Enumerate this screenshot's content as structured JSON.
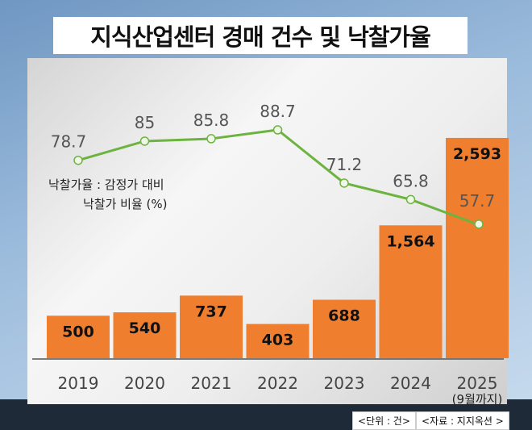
{
  "chart_data": {
    "type": "bar+line",
    "title": "지식산업센터 경매 건수 및 낙찰가율",
    "categories": [
      "2019",
      "2020",
      "2021",
      "2022",
      "2023",
      "2024",
      "2025"
    ],
    "category_sublabels": {
      "2025": "(9월까지)"
    },
    "series": [
      {
        "type": "bar",
        "values": [
          500,
          540,
          737,
          403,
          688,
          1564,
          2593
        ],
        "color": "#ef7f2f",
        "labels": [
          "500",
          "540",
          "737",
          "403",
          "688",
          "1,564",
          "2,593"
        ]
      },
      {
        "type": "line",
        "name": "낙찰가율 : 감정가 대비\n낙찰가 비율 (%)",
        "values": [
          78.7,
          85,
          85.8,
          88.7,
          71.2,
          65.8,
          57.7
        ],
        "color": "#6db33f"
      }
    ],
    "legend_line1": "낙찰가율 : 감정가 대비",
    "legend_line2": "낙찰가 비율 (%)",
    "grid": false
  },
  "notes": {
    "unit": "<단위 : 건>",
    "source": "<자료 : 지지옥션 >"
  }
}
